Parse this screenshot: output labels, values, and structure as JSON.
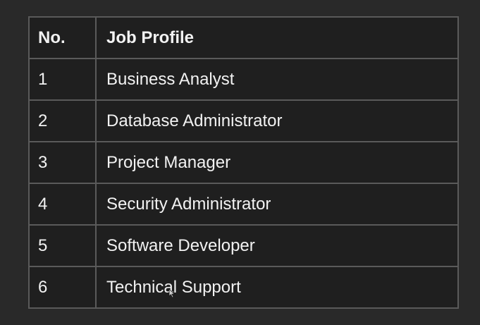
{
  "table": {
    "headers": {
      "no": "No.",
      "job_profile": "Job Profile"
    },
    "rows": [
      {
        "no": "1",
        "job_profile": "Business Analyst"
      },
      {
        "no": "2",
        "job_profile": "Database Administrator"
      },
      {
        "no": "3",
        "job_profile": "Project Manager"
      },
      {
        "no": "4",
        "job_profile": "Security Administrator"
      },
      {
        "no": "5",
        "job_profile": "Software Developer"
      },
      {
        "no": "6",
        "job_profile": "Technical Support"
      }
    ]
  },
  "colors": {
    "background": "#292929",
    "table_background": "#1f1f1f",
    "border": "#5a5a5a",
    "text": "#f2f2f2"
  },
  "icons": {
    "cursor": "mouse-pointer-icon"
  }
}
